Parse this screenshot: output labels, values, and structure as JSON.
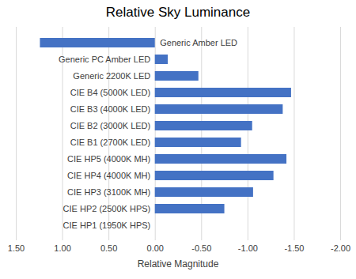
{
  "chart_data": {
    "type": "bar",
    "title": "Relative Sky Luminance",
    "orientation": "horizontal",
    "categories": [
      "Generic Amber LED",
      "Generic PC Amber LED",
      "Generic 2200K LED",
      "CIE B4 (5000K LED)",
      "CIE B3 (4000K LED)",
      "CIE B2 (3000K LED)",
      "CIE B1 (2700K LED)",
      "CIE HP5 (4000K MH)",
      "CIE HP4 (4000K MH)",
      "CIE HP3 (3100K MH)",
      "CIE HP2 (2500K HPS)",
      "CIE HP1 (1950K HPS)"
    ],
    "values": [
      1.24,
      -0.14,
      -0.47,
      -1.47,
      -1.38,
      -1.05,
      -0.93,
      -1.42,
      -1.28,
      -1.06,
      -0.75,
      0
    ],
    "color": "#4472c4",
    "xlabel": "Relative Magnitude",
    "xlim": [
      1.5,
      -2
    ],
    "xticks": [
      {
        "value": 1.5,
        "label": "1.50"
      },
      {
        "value": 1,
        "label": "1.00"
      },
      {
        "value": 0.5,
        "label": "0.50"
      },
      {
        "value": 0,
        "label": "0.00"
      },
      {
        "value": -0.5,
        "label": "-0.50"
      },
      {
        "value": -1,
        "label": "-1.00"
      },
      {
        "value": -1.5,
        "label": "-1.50"
      },
      {
        "value": -2,
        "label": "-2.00"
      }
    ],
    "grid": true
  }
}
